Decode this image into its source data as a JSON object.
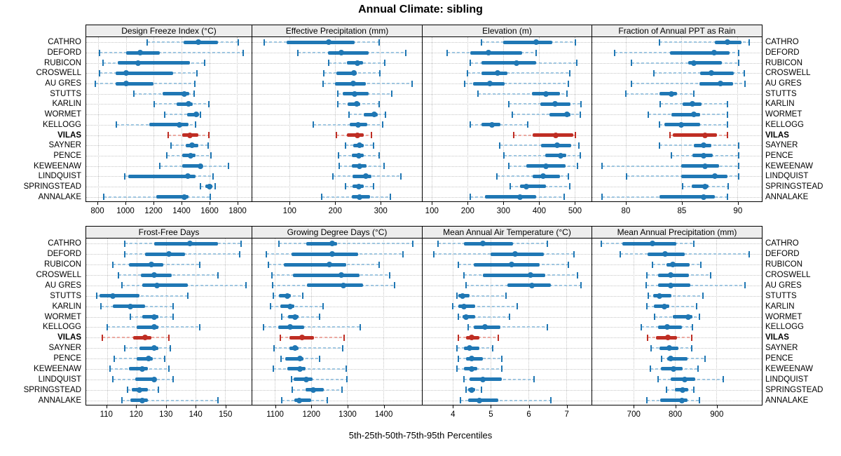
{
  "title": "Annual Climate: sibling",
  "caption": "5th-25th-50th-75th-95th Percentiles",
  "percentiles": [
    "5th",
    "25th",
    "50th",
    "75th",
    "95th"
  ],
  "highlight_site": "VILAS",
  "sites": [
    "CATHRO",
    "DEFORD",
    "RUBICON",
    "CROSWELL",
    "AU GRES",
    "STUTTS",
    "KARLIN",
    "WORMET",
    "KELLOGG",
    "VILAS",
    "SAYNER",
    "PENCE",
    "KEWEENAW",
    "LINDQUIST",
    "SPRINGSTEAD",
    "ANNALAKE"
  ],
  "colors": {
    "series_main": "#1f77b4",
    "series_light": "#9fc6e0",
    "highlight_main": "#bf2e24",
    "highlight_light": "#eba9a2",
    "grid": "#c6c6c6",
    "strip_bg": "#ededed",
    "border": "#000000"
  },
  "chart_data": [
    {
      "type": "dotplot_percentile_intervals",
      "panel": "Design Freeze Index (°C)",
      "xlim": [
        715,
        1905
      ],
      "ticks": [
        800,
        1000,
        1200,
        1400,
        1600,
        1800
      ],
      "grid": "dotted",
      "series": [
        [
          1155,
          1415,
          1520,
          1665,
          1810
        ],
        [
          810,
          1002,
          1105,
          1245,
          1845
        ],
        [
          835,
          943,
          1088,
          1463,
          1565
        ],
        [
          810,
          928,
          1002,
          1340,
          1510
        ],
        [
          780,
          928,
          1000,
          1200,
          1495
        ],
        [
          1060,
          1265,
          1420,
          1455,
          1490
        ],
        [
          1205,
          1365,
          1450,
          1480,
          1595
        ],
        [
          1280,
          1440,
          1505,
          1525,
          1535
        ],
        [
          930,
          1170,
          1385,
          1450,
          1500
        ],
        [
          1305,
          1405,
          1460,
          1520,
          1595
        ],
        [
          1325,
          1430,
          1475,
          1520,
          1590
        ],
        [
          1295,
          1405,
          1465,
          1500,
          1615
        ],
        [
          1245,
          1405,
          1535,
          1550,
          1740
        ],
        [
          990,
          1020,
          1445,
          1500,
          1630
        ],
        [
          1535,
          1570,
          1600,
          1625,
          1645
        ],
        [
          840,
          1220,
          1420,
          1450,
          1610
        ]
      ]
    },
    {
      "type": "dotplot_percentile_intervals",
      "panel": "Effective Precipitation (mm)",
      "xlim": [
        18,
        392
      ],
      "ticks": [
        100,
        200,
        300
      ],
      "grid": "dotted",
      "series": [
        [
          44,
          94,
          187,
          244,
          297
        ],
        [
          118,
          185,
          214,
          274,
          356
        ],
        [
          186,
          226,
          250,
          262,
          310
        ],
        [
          176,
          203,
          242,
          249,
          300
        ],
        [
          174,
          200,
          241,
          269,
          370
        ],
        [
          207,
          217,
          243,
          274,
          325
        ],
        [
          207,
          228,
          248,
          256,
          297
        ],
        [
          231,
          263,
          287,
          295,
          311
        ],
        [
          152,
          233,
          251,
          272,
          306
        ],
        [
          204,
          227,
          250,
          264,
          281
        ],
        [
          224,
          241,
          254,
          263,
          286
        ],
        [
          208,
          237,
          253,
          264,
          297
        ],
        [
          210,
          237,
          255,
          270,
          309
        ],
        [
          195,
          239,
          269,
          281,
          346
        ],
        [
          223,
          239,
          253,
          263,
          285
        ],
        [
          171,
          238,
          255,
          278,
          322
        ]
      ]
    },
    {
      "type": "dotplot_percentile_intervals",
      "panel": "Elevation (m)",
      "xlim": [
        74,
        548
      ],
      "ticks": [
        100,
        200,
        300,
        400,
        500
      ],
      "grid": "dotted",
      "series": [
        [
          240,
          300,
          393,
          437,
          502
        ],
        [
          142,
          208,
          258,
          354,
          393
        ],
        [
          208,
          239,
          337,
          393,
          507
        ],
        [
          200,
          240,
          284,
          312,
          487
        ],
        [
          192,
          216,
          263,
          304,
          484
        ],
        [
          230,
          380,
          420,
          460,
          480
        ],
        [
          315,
          405,
          445,
          490,
          518
        ],
        [
          325,
          430,
          480,
          489,
          517
        ],
        [
          208,
          240,
          269,
          293,
          369
        ],
        [
          330,
          382,
          448,
          497,
          502
        ],
        [
          291,
          406,
          451,
          491,
          513
        ],
        [
          303,
          419,
          461,
          478,
          517
        ],
        [
          315,
          365,
          420,
          475,
          508
        ],
        [
          283,
          382,
          412,
          459,
          484
        ],
        [
          320,
          347,
          365,
          420,
          488
        ],
        [
          207,
          250,
          348,
          392,
          471
        ]
      ]
    },
    {
      "type": "dotplot_percentile_intervals",
      "panel": "Fraction of Annual PPT as Rain",
      "xlim": [
        77,
        92.2
      ],
      "ticks": [
        80,
        85,
        90
      ],
      "grid": "dotted",
      "series": [
        [
          83,
          88,
          89.1,
          90.4,
          91.1
        ],
        [
          79,
          84,
          87.9,
          89.3,
          90.1
        ],
        [
          80.5,
          85.6,
          86.1,
          88.6,
          90.1
        ],
        [
          82.5,
          86.7,
          87.7,
          89.7,
          90.6
        ],
        [
          80.5,
          86.6,
          88.5,
          89.6,
          90.7
        ],
        [
          80,
          83,
          84.1,
          84.6,
          86.1
        ],
        [
          83.1,
          85.1,
          86,
          86.8,
          89.1
        ],
        [
          82,
          84.1,
          86.1,
          86.7,
          89.1
        ],
        [
          83,
          83.5,
          85,
          86.7,
          89.1
        ],
        [
          84,
          84.2,
          87.1,
          88.2,
          89.1
        ],
        [
          83,
          86.1,
          87,
          87.7,
          90.1
        ],
        [
          84.1,
          86,
          87,
          87.8,
          90.1
        ],
        [
          77.9,
          85,
          87.1,
          88.4,
          90.1
        ],
        [
          80.1,
          85,
          88,
          89.1,
          90.1
        ],
        [
          85.1,
          85.9,
          87.1,
          87.4,
          89.2
        ],
        [
          77.9,
          83,
          87,
          88,
          89.1
        ]
      ]
    },
    {
      "type": "dotplot_percentile_intervals",
      "panel": "Frost-Free Days",
      "xlim": [
        103,
        159
      ],
      "ticks": [
        110,
        120,
        130,
        140,
        150
      ],
      "grid": "dotted",
      "series": [
        [
          116,
          126,
          138,
          147.5,
          155.5
        ],
        [
          116,
          123,
          131,
          136.5,
          155
        ],
        [
          112,
          117.5,
          125,
          129,
          141.5
        ],
        [
          114,
          121.5,
          126,
          132,
          147.5
        ],
        [
          115,
          122,
          127,
          137.5,
          157
        ],
        [
          106.5,
          107.5,
          112,
          121,
          137.5
        ],
        [
          108,
          112,
          118,
          123,
          132.5
        ],
        [
          118,
          122,
          126,
          127.5,
          132.5
        ],
        [
          110,
          120,
          126,
          127.5,
          141.5
        ],
        [
          108.5,
          119,
          123,
          125,
          131
        ],
        [
          116,
          121,
          126,
          127.5,
          131.5
        ],
        [
          112.5,
          120,
          124,
          125.5,
          129.5
        ],
        [
          111,
          117.5,
          122,
          124,
          131
        ],
        [
          112,
          119.5,
          126,
          126.5,
          132.5
        ],
        [
          117,
          118.5,
          121,
          124,
          127.5
        ],
        [
          115,
          118,
          122,
          124,
          147.5
        ]
      ]
    },
    {
      "type": "dotplot_percentile_intervals",
      "panel": "Growing Degree Days (°C)",
      "xlim": [
        1037,
        1507
      ],
      "ticks": [
        1100,
        1200,
        1300,
        1400
      ],
      "grid": "dotted",
      "series": [
        [
          1111,
          1187,
          1259,
          1272,
          1481
        ],
        [
          1075,
          1146,
          1258,
          1330,
          1455
        ],
        [
          1082,
          1124,
          1250,
          1298,
          1388
        ],
        [
          1092,
          1150,
          1284,
          1335,
          1417
        ],
        [
          1094,
          1188,
          1290,
          1343,
          1432
        ],
        [
          1095,
          1111,
          1135,
          1143,
          1177
        ],
        [
          1088,
          1114,
          1141,
          1153,
          1234
        ],
        [
          1119,
          1137,
          1156,
          1165,
          1223
        ],
        [
          1069,
          1108,
          1142,
          1180,
          1337
        ],
        [
          1114,
          1140,
          1174,
          1208,
          1292
        ],
        [
          1097,
          1139,
          1155,
          1166,
          1288
        ],
        [
          1116,
          1129,
          1170,
          1179,
          1223
        ],
        [
          1095,
          1134,
          1170,
          1184,
          1298
        ],
        [
          1146,
          1152,
          1187,
          1205,
          1300
        ],
        [
          1148,
          1185,
          1206,
          1235,
          1285
        ],
        [
          1119,
          1153,
          1168,
          1201,
          1245
        ]
      ]
    },
    {
      "type": "dotplot_percentile_intervals",
      "panel": "Mean Annual Air Temperature (°C)",
      "xlim": [
        3.2,
        7.67
      ],
      "ticks": [
        4,
        5,
        6,
        7
      ],
      "grid": "dotted",
      "series": [
        [
          3.6,
          4.3,
          4.8,
          5.6,
          6.5
        ],
        [
          3.5,
          5.0,
          5.65,
          6.4,
          7.2
        ],
        [
          4.15,
          4.55,
          5.55,
          6.3,
          7.05
        ],
        [
          4.3,
          4.8,
          6.05,
          6.45,
          7.3
        ],
        [
          4.35,
          5.45,
          6.1,
          6.6,
          7.4
        ],
        [
          4.1,
          4.15,
          4.25,
          4.45,
          5.4
        ],
        [
          4.0,
          4.15,
          4.3,
          4.6,
          5.7
        ],
        [
          4.15,
          4.25,
          4.35,
          4.6,
          5.5
        ],
        [
          4.4,
          4.55,
          4.85,
          5.25,
          6.5
        ],
        [
          4.15,
          4.35,
          4.5,
          4.7,
          5.2
        ],
        [
          4.1,
          4.3,
          4.45,
          4.7,
          5.05
        ],
        [
          4.15,
          4.35,
          4.5,
          4.8,
          5.3
        ],
        [
          4.1,
          4.3,
          4.5,
          4.65,
          5.3
        ],
        [
          4.3,
          4.45,
          4.8,
          5.3,
          6.15
        ],
        [
          4.35,
          4.4,
          4.5,
          4.6,
          4.75
        ],
        [
          4.2,
          4.4,
          4.7,
          5.2,
          6.6
        ]
      ]
    },
    {
      "type": "dotplot_percentile_intervals",
      "panel": "Mean Annual Precipitation (mm)",
      "xlim": [
        600,
        1010
      ],
      "ticks": [
        700,
        800,
        900
      ],
      "grid": "dotted",
      "series": [
        [
          622,
          673,
          746,
          803,
          846
        ],
        [
          667,
          734,
          777,
          824,
          980
        ],
        [
          746,
          780,
          794,
          836,
          862
        ],
        [
          732,
          759,
          790,
          834,
          886
        ],
        [
          731,
          759,
          790,
          838,
          969
        ],
        [
          735,
          748,
          762,
          791,
          867
        ],
        [
          732,
          749,
          774,
          787,
          853
        ],
        [
          751,
          794,
          832,
          842,
          859
        ],
        [
          718,
          759,
          782,
          817,
          843
        ],
        [
          734,
          754,
          783,
          805,
          841
        ],
        [
          743,
          763,
          786,
          808,
          841
        ],
        [
          768,
          782,
          790,
          830,
          872
        ],
        [
          741,
          766,
          796,
          819,
          856
        ],
        [
          759,
          790,
          824,
          849,
          917
        ],
        [
          779,
          800,
          819,
          832,
          846
        ],
        [
          732,
          765,
          817,
          831,
          859
        ]
      ]
    }
  ]
}
